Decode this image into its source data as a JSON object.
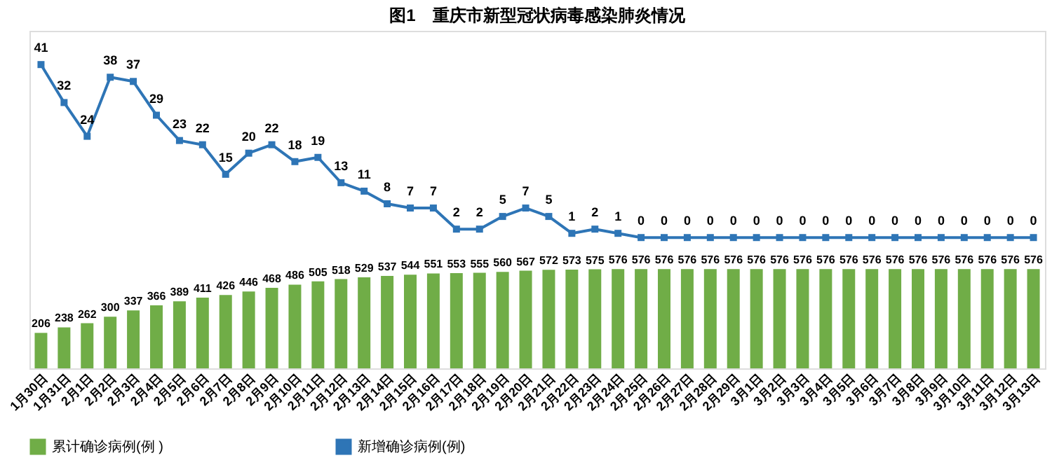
{
  "chart_data": {
    "type": "bar",
    "title": "图1　重庆市新型冠状病毒感染肺炎情况",
    "categories": [
      "1月30日",
      "1月31日",
      "2月1日",
      "2月2日",
      "2月3日",
      "2月4日",
      "2月5日",
      "2月6日",
      "2月7日",
      "2月8日",
      "2月9日",
      "2月10日",
      "2月11日",
      "2月12日",
      "2月13日",
      "2月14日",
      "2月15日",
      "2月16日",
      "2月17日",
      "2月18日",
      "2月19日",
      "2月20日",
      "2月21日",
      "2月22日",
      "2月23日",
      "2月24日",
      "2月25日",
      "2月26日",
      "2月27日",
      "2月28日",
      "2月29日",
      "3月1日",
      "3月2日",
      "3月3日",
      "3月4日",
      "3月5日",
      "3月6日",
      "3月7日",
      "3月8日",
      "3月9日",
      "3月10日",
      "3月11日",
      "3月12日",
      "3月13日"
    ],
    "series": [
      {
        "name": "累计确诊病例(例 )",
        "color": "#70ad47",
        "values": [
          206,
          238,
          262,
          300,
          337,
          366,
          389,
          411,
          426,
          446,
          468,
          486,
          505,
          518,
          529,
          537,
          544,
          551,
          553,
          555,
          560,
          567,
          572,
          573,
          575,
          576,
          576,
          576,
          576,
          576,
          576,
          576,
          576,
          576,
          576,
          576,
          576,
          576,
          576,
          576,
          576,
          576,
          576,
          576
        ]
      },
      {
        "name": "新增确诊病例(例)",
        "type": "line",
        "axis": "y2",
        "color": "#2e75b6",
        "values": [
          41,
          32,
          24,
          38,
          37,
          29,
          23,
          22,
          15,
          20,
          22,
          18,
          19,
          13,
          11,
          8,
          7,
          7,
          2,
          2,
          5,
          7,
          5,
          1,
          2,
          1,
          0,
          0,
          0,
          0,
          0,
          0,
          0,
          0,
          0,
          0,
          0,
          0,
          0,
          0,
          0,
          0,
          0,
          0
        ]
      }
    ],
    "ylim": [
      0,
      1960
    ],
    "y2lim": [
      -31,
      49
    ],
    "tick_labels": "x",
    "data_labels": true,
    "grid": false,
    "legend": "bottom",
    "marker": "square",
    "line_style": "solid"
  }
}
